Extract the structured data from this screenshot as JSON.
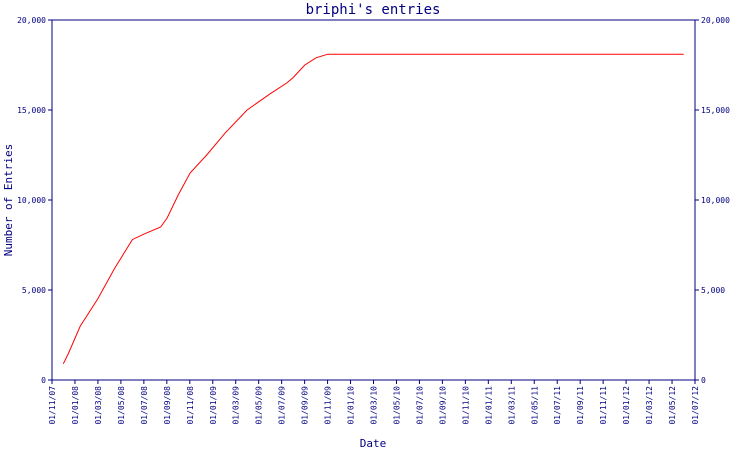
{
  "chart_data": {
    "type": "line",
    "title": "briphi's entries",
    "xlabel": "Date",
    "ylabel": "Number of Entries",
    "grid": false,
    "x_tick_labels": [
      "01/11/07",
      "01/01/08",
      "01/03/08",
      "01/05/08",
      "01/07/08",
      "01/09/08",
      "01/11/08",
      "01/01/09",
      "01/03/09",
      "01/05/09",
      "01/07/09",
      "01/09/09",
      "01/11/09",
      "01/01/10",
      "01/03/10",
      "01/05/10",
      "01/07/10",
      "01/09/10",
      "01/11/10",
      "01/01/11",
      "01/03/11",
      "01/05/11",
      "01/07/11",
      "01/09/11",
      "01/11/11",
      "01/01/12",
      "01/03/12",
      "01/05/12",
      "01/07/12"
    ],
    "y_ticks": [
      0,
      5000,
      10000,
      15000,
      20000
    ],
    "y_tick_labels": [
      "0",
      "5,000",
      "10,000",
      "15,000",
      "20,000"
    ],
    "ylim": [
      0,
      20000
    ],
    "xlim": [
      "2007-11-01",
      "2012-07-01"
    ],
    "series": [
      {
        "color": "#ff0000",
        "x": [
          "2007-12-01",
          "2007-12-15",
          "2008-01-15",
          "2008-03-01",
          "2008-04-15",
          "2008-06-01",
          "2008-07-01",
          "2008-08-15",
          "2008-09-01",
          "2008-10-01",
          "2008-11-01",
          "2008-12-15",
          "2009-02-01",
          "2009-04-01",
          "2009-06-01",
          "2009-07-15",
          "2009-08-01",
          "2009-09-01",
          "2009-10-01",
          "2009-11-01",
          "2010-01-01",
          "2011-01-01",
          "2012-06-01"
        ],
        "y": [
          900,
          1500,
          3000,
          4500,
          6200,
          7800,
          8100,
          8500,
          9000,
          10300,
          11500,
          12500,
          13700,
          15000,
          15900,
          16500,
          16800,
          17500,
          17900,
          18100,
          18100,
          18100,
          18100
        ]
      }
    ]
  }
}
